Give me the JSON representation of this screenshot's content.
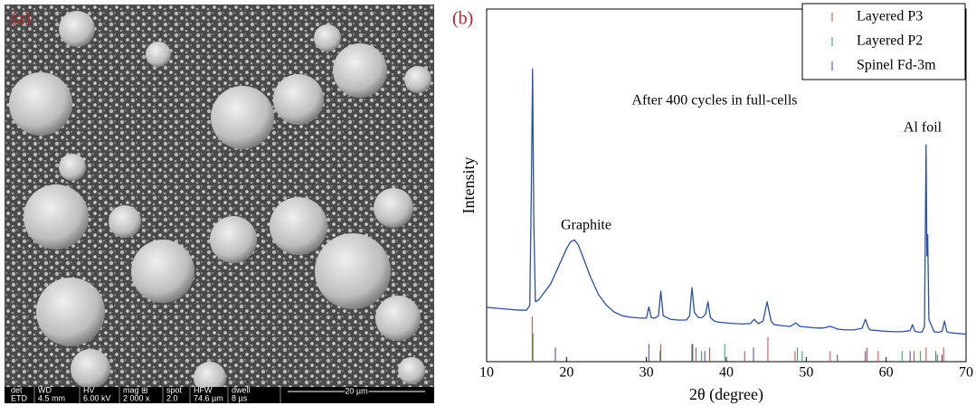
{
  "sem_image": {
    "label": "(a)",
    "info_bar": {
      "headers": [
        "det",
        "WD",
        "HV",
        "mag ⊞",
        "spot",
        "HFW",
        "dwell"
      ],
      "values": [
        "ETD",
        "4.5 mm",
        "6.00 kV",
        "2 000 x",
        "2.0",
        "74.6 µm",
        "8 µs"
      ],
      "scale_bar": "20 µm"
    }
  },
  "chart_data": {
    "type": "line",
    "panel_label": "(b)",
    "xlabel": "2θ (degree)",
    "ylabel": "Intensity",
    "annotations": [
      "After 400 cycles in full-cells",
      "Graphite",
      "Al foil"
    ],
    "color": "#2b50a6",
    "x": [
      10,
      11,
      12,
      13,
      14,
      15,
      15.4,
      15.6,
      15.75,
      15.9,
      16.1,
      16.5,
      17,
      18,
      19,
      20,
      20.5,
      21,
      21.5,
      22,
      23,
      24,
      25,
      26,
      27,
      28,
      29,
      30,
      30.3,
      30.6,
      31,
      31.5,
      31.8,
      32.1,
      33,
      34,
      35,
      35.4,
      35.7,
      36,
      36.5,
      37,
      37.4,
      37.7,
      38,
      38.5,
      39,
      40,
      41,
      42,
      43,
      43.5,
      44,
      44.6,
      45.1,
      45.6,
      46,
      47,
      48,
      48.7,
      49.2,
      50,
      51,
      52,
      53,
      54,
      55,
      56,
      57,
      57.4,
      57.8,
      58,
      59,
      60,
      61,
      62,
      63,
      63.3,
      63.6,
      64,
      64.5,
      64.8,
      65,
      65.1,
      65.2,
      65.35,
      66,
      66.5,
      67,
      67.3,
      67.6,
      68,
      69,
      70
    ],
    "values": [
      15.4,
      15.2,
      15,
      14.8,
      14.6,
      14.6,
      16,
      50,
      83,
      40,
      17,
      17.5,
      19,
      22,
      27,
      32,
      34,
      34.5,
      33,
      30,
      24,
      19,
      16,
      14,
      13,
      12.6,
      12.4,
      12.3,
      15.5,
      12.5,
      12.3,
      13,
      20,
      13,
      12,
      11.8,
      11.8,
      13,
      21,
      14,
      12.5,
      12.5,
      13.5,
      17,
      12.5,
      11.5,
      11.2,
      11,
      10.8,
      10.7,
      10.8,
      12,
      10.8,
      11.5,
      17,
      11.5,
      10.5,
      10.2,
      10,
      11,
      10,
      9.8,
      9.6,
      9.5,
      10,
      9.2,
      9,
      9,
      9.5,
      12,
      9.5,
      9,
      8.8,
      8.6,
      8.5,
      8.5,
      8.8,
      10.5,
      8.6,
      8.4,
      8.4,
      10,
      61.5,
      30,
      36,
      12,
      8.5,
      8.3,
      8.6,
      11.5,
      8.5,
      8.2,
      8,
      7.8
    ],
    "reference_patterns": [
      {
        "name": "Layered P3",
        "color": "#d0453a",
        "positions": [
          15.7,
          31.8,
          36.2,
          37.9,
          42.3,
          45.2,
          48.6,
          53,
          57.6,
          59,
          63.5,
          65,
          67.2
        ],
        "heights": [
          12.8,
          5,
          4,
          4,
          3,
          7,
          3,
          3,
          4,
          3,
          3,
          4,
          4
        ]
      },
      {
        "name": "Layered P2",
        "color": "#2e9a5e",
        "positions": [
          15.8,
          31.7,
          35.8,
          36.9,
          39.8,
          48.9,
          49.5,
          62,
          64.3,
          66.2
        ],
        "heights": [
          8,
          3,
          5,
          3,
          5,
          4,
          3,
          3,
          3,
          3
        ]
      },
      {
        "name": "Spinel Fd-3m",
        "color": "#5b3a8c",
        "positions": [
          18.6,
          30.3,
          35.7,
          37.3,
          43.4,
          53.9,
          57.4,
          63,
          66.4,
          67
        ],
        "heights": [
          4,
          5,
          5,
          3,
          4,
          2,
          3,
          3,
          2,
          2
        ]
      }
    ],
    "xlim": [
      10,
      70
    ],
    "xticks": [
      10,
      20,
      30,
      40,
      50,
      60,
      70
    ],
    "ylim": [
      0,
      100
    ],
    "legend": "upper right"
  }
}
